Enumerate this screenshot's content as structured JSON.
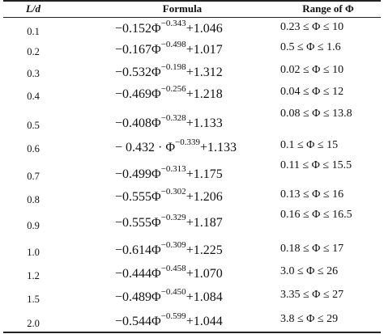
{
  "table": {
    "headers": {
      "ld": "L/d",
      "formula": "Formula",
      "range": "Range of Φ"
    },
    "rows": [
      {
        "ld": "0.1",
        "coef": "−0.152Φ",
        "exp": "−0.343",
        "const": "+1.046",
        "range": "0.23 ≤ Φ ≤ 10"
      },
      {
        "ld": "0.2",
        "coef": "−0.167Φ",
        "exp": "−0.498",
        "const": "+1.017",
        "range": "0.5 ≤ Φ ≤ 1.6"
      },
      {
        "ld": "0.3",
        "coef": "−0.532Φ",
        "exp": "−0.198",
        "const": "+1.312",
        "range": "0.02 ≤ Φ ≤ 10"
      },
      {
        "ld": "0.4",
        "coef": "−0.469Φ",
        "exp": "−0.256",
        "const": "+1.218",
        "range": "0.04 ≤ Φ ≤ 12"
      },
      {
        "ld": "0.5",
        "coef": "−0.408Φ",
        "exp": "−0.328",
        "const": "+1.133",
        "range": "0.08 ≤ Φ ≤ 13.8"
      },
      {
        "ld": "0.6",
        "coef": "− 0.432 · Φ",
        "exp": "−0.339",
        "const": "+1.133",
        "range": "0.1 ≤ Φ ≤ 15"
      },
      {
        "ld": "0.7",
        "coef": "−0.499Φ",
        "exp": "−0.313",
        "const": "+1.175",
        "range": "0.11 ≤ Φ ≤ 15.5"
      },
      {
        "ld": "0.8",
        "coef": "−0.555Φ",
        "exp": "−0.302",
        "const": "+1.206",
        "range": "0.13 ≤ Φ ≤ 16"
      },
      {
        "ld": "0.9",
        "coef": "−0.555Φ",
        "exp": "−0.329",
        "const": "+1.187",
        "range": "0.16 ≤ Φ ≤ 16.5"
      },
      {
        "ld": "1.0",
        "coef": "−0.614Φ",
        "exp": "−0.309",
        "const": "+1.225",
        "range": "0.18 ≤ Φ ≤ 17"
      },
      {
        "ld": "1.2",
        "coef": "−0.444Φ",
        "exp": "−0.458",
        "const": "+1.070",
        "range": "3.0 ≤ Φ ≤ 26"
      },
      {
        "ld": "1.5",
        "coef": "−0.489Φ",
        "exp": "−0.450",
        "const": "+1.084",
        "range": "3.35 ≤ Φ ≤ 27"
      },
      {
        "ld": "2.0",
        "coef": "−0.544Φ",
        "exp": "−0.599",
        "const": "+1.044",
        "range": "3.8 ≤ Φ ≤ 29"
      }
    ]
  }
}
